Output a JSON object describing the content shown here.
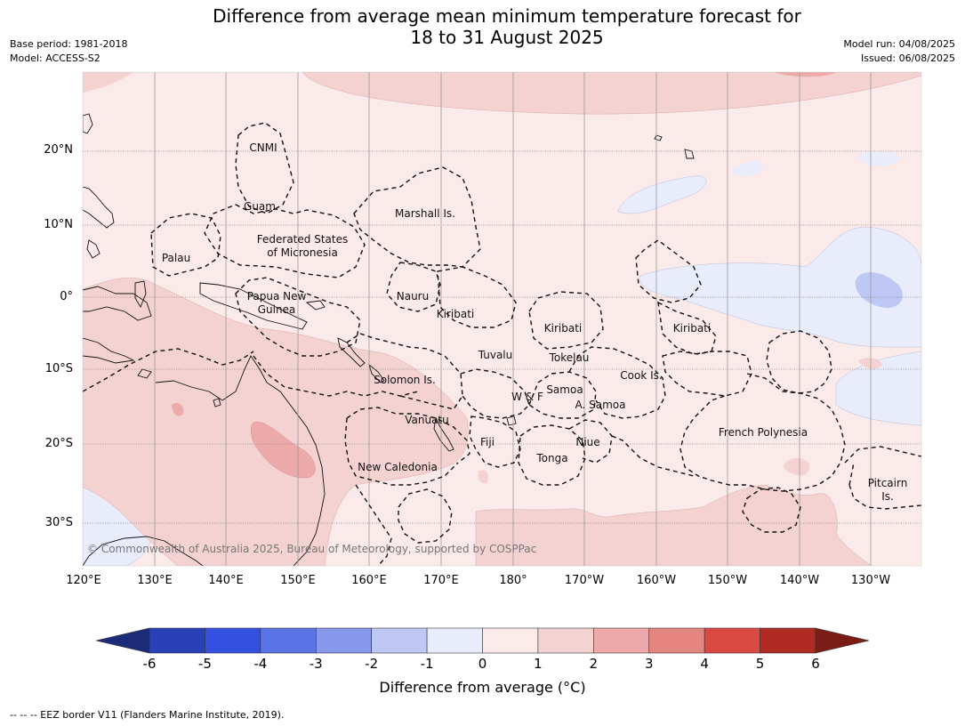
{
  "header": {
    "title_line1": "Difference from average mean minimum temperature forecast for",
    "title_line2": "18 to 31 August 2025",
    "base_period": "Base period: 1981-2018",
    "model": "Model: ACCESS-S2",
    "model_run": "Model run: 04/08/2025",
    "issued": "Issued: 06/08/2025"
  },
  "map": {
    "lat_labels": [
      "20°N",
      "10°N",
      "0°",
      "10°S",
      "20°S",
      "30°S"
    ],
    "lon_labels": [
      "120°E",
      "130°E",
      "140°E",
      "150°E",
      "160°E",
      "170°E",
      "180°",
      "170°W",
      "160°W",
      "150°W",
      "140°W",
      "130°W"
    ],
    "regions": [
      "CNMI",
      "Guam",
      "Marshall Is.",
      "Federated States",
      "of Micronesia",
      "Palau",
      "Papua New",
      "Guinea",
      "Nauru",
      "Kiribati",
      "Kiribati",
      "Kiribati",
      "Tuvalu",
      "Tokelau",
      "Solomon Is.",
      "W & F",
      "Samoa",
      "A. Samoa",
      "Cook Is.",
      "Vanuatu",
      "Fiji",
      "Niue",
      "Tonga",
      "French Polynesia",
      "New Caledonia",
      "Pitcairn",
      "Is."
    ],
    "copyright": "© Commonwealth of Australia 2025, Bureau of Meteorology, supported by COSPPac"
  },
  "colorbar": {
    "ticks": [
      "-6",
      "-5",
      "-4",
      "-3",
      "-2",
      "-1",
      "0",
      "1",
      "2",
      "3",
      "4",
      "5",
      "6"
    ],
    "colors": [
      "#1c2a7a",
      "#2a40b8",
      "#3350e0",
      "#5a74e6",
      "#8797ec",
      "#bfc8f4",
      "#e8ecfb",
      "#fbeaea",
      "#f5d2d2",
      "#edaaaa",
      "#e5857f",
      "#db4a40",
      "#ae2a22",
      "#7a1c17"
    ],
    "title": "Difference from average (°C)"
  },
  "footnote": "--  --  -- EEZ border V11 (Flanders Marine Institute, 2019)."
}
